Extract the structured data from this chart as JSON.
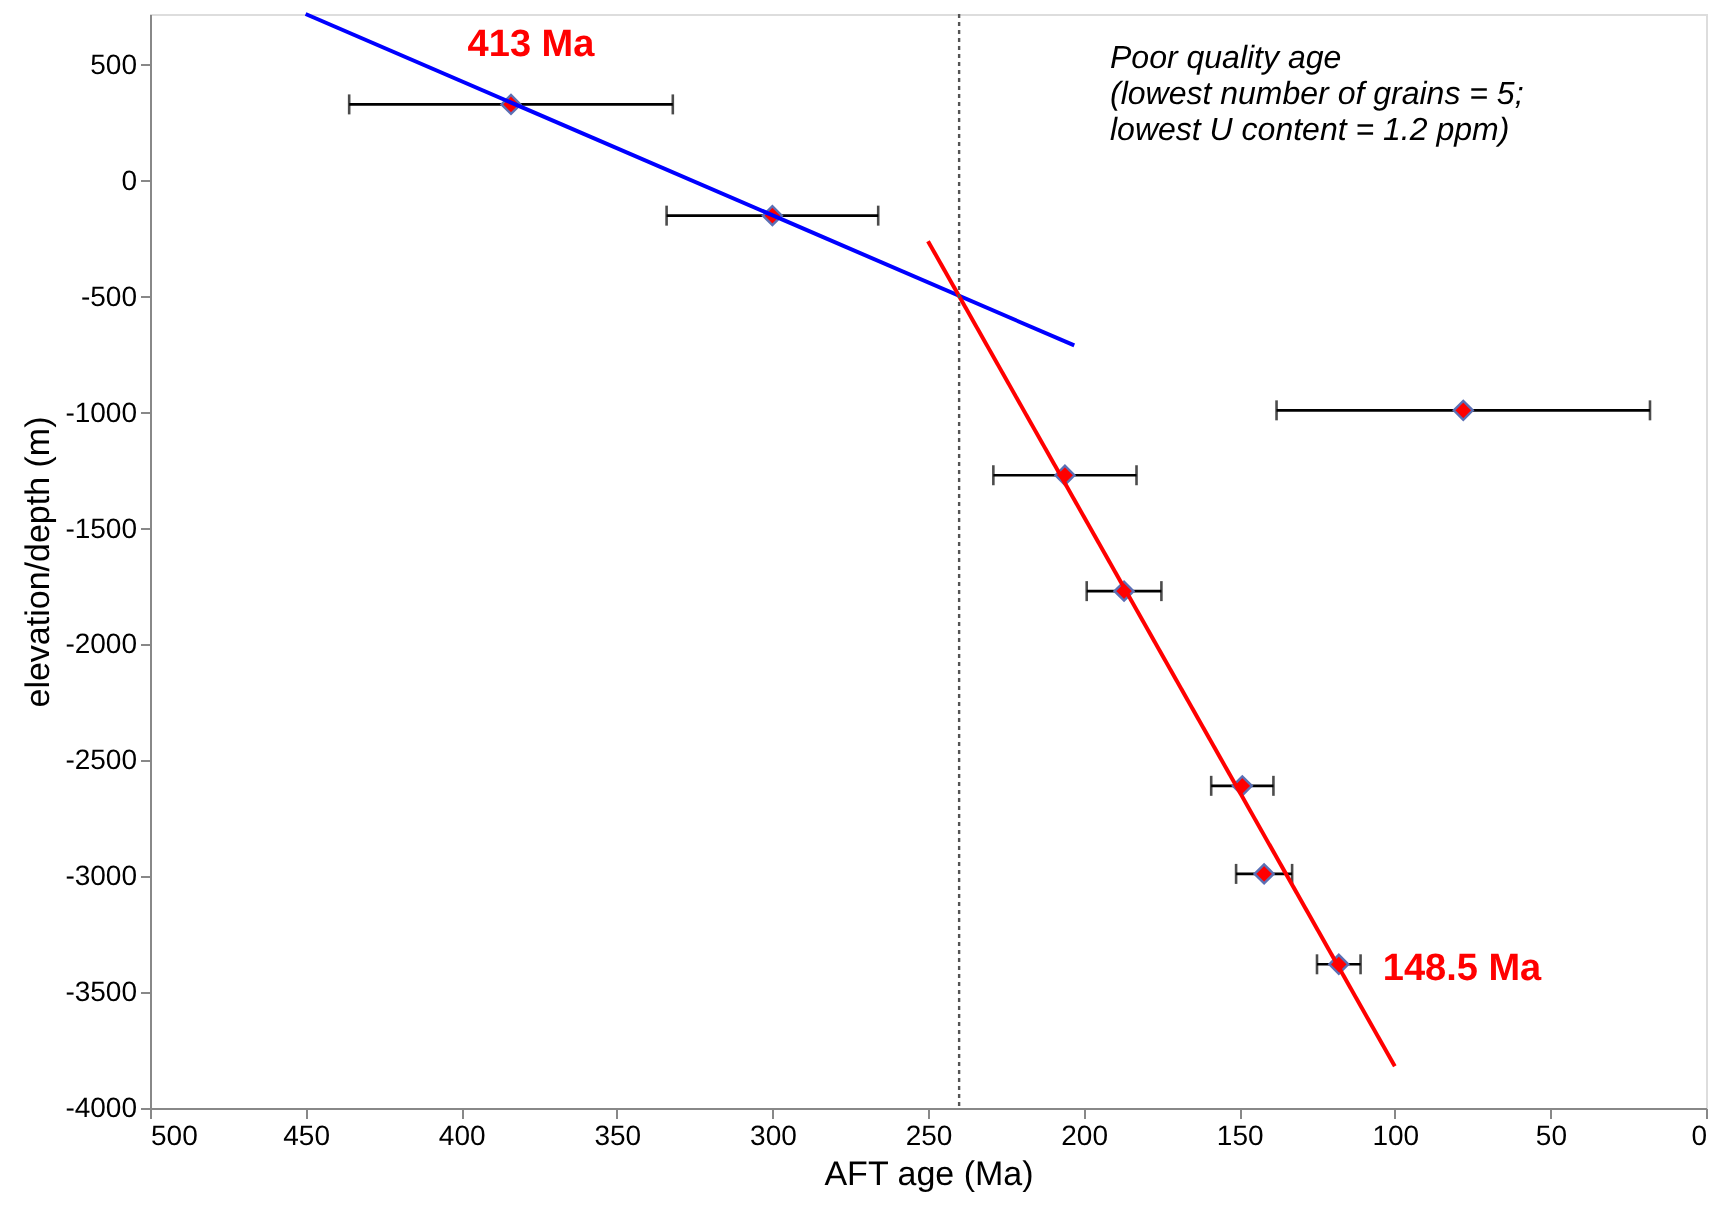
{
  "chart_data": {
    "type": "scatter",
    "xlabel": "AFT age (Ma)",
    "ylabel": "elevation/depth (m)",
    "xlim": [
      500,
      0
    ],
    "ylim": [
      -4000,
      720
    ],
    "xticks": [
      500,
      450,
      400,
      350,
      300,
      250,
      200,
      150,
      100,
      50,
      0
    ],
    "yticks": [
      -4000,
      -3500,
      -3000,
      -2500,
      -2000,
      -1500,
      -1000,
      -500,
      0,
      500
    ],
    "grid": false,
    "marker": "diamond",
    "series": [
      {
        "color": "#ff0000",
        "x": [
          384,
          300,
          206,
          187,
          149,
          142,
          118,
          78
        ],
        "values": [
          330,
          -150,
          -1270,
          -1770,
          -2610,
          -2990,
          -3380,
          -990
        ],
        "xerrors": [
          52,
          34,
          23,
          12,
          10,
          9,
          7,
          60
        ]
      },
      {
        "type": "line",
        "color": "#0000ff",
        "marker": "none",
        "x": [
          450,
          203
        ],
        "values": [
          720,
          -710
        ]
      },
      {
        "type": "line",
        "color": "#ff0000",
        "marker": "none",
        "x": [
          250,
          100
        ],
        "values": [
          -260,
          -3820
        ]
      }
    ],
    "ref_lines": [
      {
        "axis": "x",
        "value": 240,
        "line_style": "dotted",
        "color": "#555555"
      }
    ],
    "annotations": [
      {
        "text": "413 Ma",
        "x": 384,
        "y": 330
      },
      {
        "text": "148.5 Ma",
        "x": 118,
        "y": -3380
      },
      "Poor quality age\n(lowest number of grains = 5;\nlowest U content = 1.2 ppm)"
    ]
  }
}
